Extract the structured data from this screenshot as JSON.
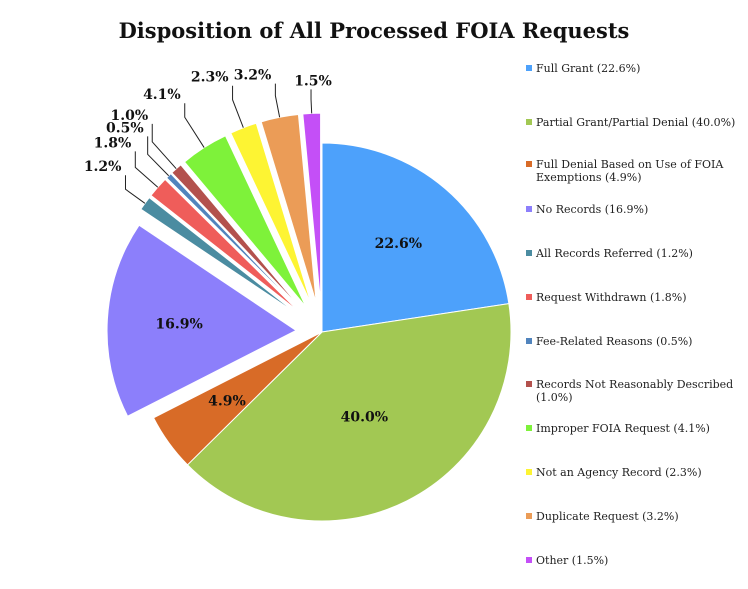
{
  "chart_data": {
    "type": "pie",
    "title": "Disposition of All Processed FOIA Requests",
    "slices": [
      {
        "name": "Full Grant",
        "legend": "Full Grant (22.6%)",
        "value": 22.6,
        "label": "22.6%",
        "color": "#4da1fb",
        "exploded": false
      },
      {
        "name": "Partial Grant/Partial Denial",
        "legend": "Partial Grant/Partial Denial (40.0%)",
        "value": 40.0,
        "label": "40.0%",
        "color": "#a2c853",
        "exploded": false
      },
      {
        "name": "Full Denial Based on Use of FOIA Exemptions",
        "legend": "Full Denial Based on Use of FOIA Exemptions (4.9%)",
        "value": 4.9,
        "label": "4.9%",
        "color": "#d86b27",
        "exploded": false
      },
      {
        "name": "No Records",
        "legend": "No Records (16.9%)",
        "value": 16.9,
        "label": "16.9%",
        "color": "#8c7ffb",
        "exploded": true
      },
      {
        "name": "All Records Referred",
        "legend": "All Records Referred (1.2%)",
        "value": 1.2,
        "label": "1.2%",
        "color": "#4b8ca1",
        "exploded": true
      },
      {
        "name": "Request Withdrawn",
        "legend": "Request Withdrawn (1.8%)",
        "value": 1.8,
        "label": "1.8%",
        "color": "#ef5d5a",
        "exploded": true
      },
      {
        "name": "Fee-Related Reasons",
        "legend": "Fee-Related Reasons (0.5%)",
        "value": 0.5,
        "label": "0.5%",
        "color": "#5184bd",
        "exploded": true
      },
      {
        "name": "Records Not Reasonably Described",
        "legend": "Records Not Reasonably Described (1.0%)",
        "value": 1.0,
        "label": "1.0%",
        "color": "#b3514d",
        "exploded": true
      },
      {
        "name": "Improper FOIA Request",
        "legend": "Improper FOIA Request (4.1%)",
        "value": 4.1,
        "label": "4.1%",
        "color": "#7ef23a",
        "exploded": true
      },
      {
        "name": "Not an Agency Record",
        "legend": "Not an Agency Record (2.3%)",
        "value": 2.3,
        "label": "2.3%",
        "color": "#fdf433",
        "exploded": true
      },
      {
        "name": "Duplicate Request",
        "legend": "Duplicate Request (3.2%)",
        "value": 3.2,
        "label": "3.2%",
        "color": "#eb9c57",
        "exploded": true
      },
      {
        "name": "Other",
        "legend": "Other (1.5%)",
        "value": 1.5,
        "label": "1.5%",
        "color": "#c44ff7",
        "exploded": true
      }
    ]
  }
}
